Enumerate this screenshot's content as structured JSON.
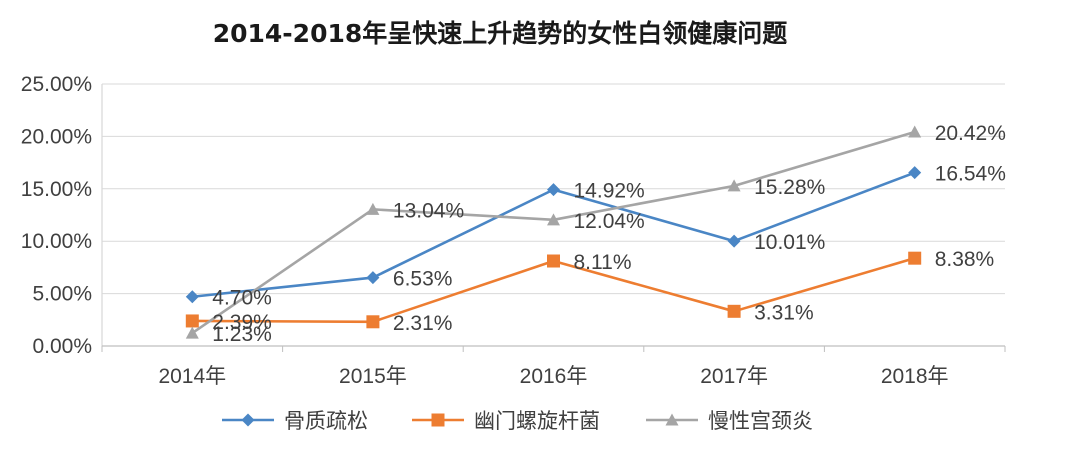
{
  "chart_data": {
    "type": "line",
    "title": "2014-2018年呈快速上升趋势的女性白领健康问题",
    "categories": [
      "2014年",
      "2015年",
      "2016年",
      "2017年",
      "2018年"
    ],
    "y_ticks": [
      "0.00%",
      "5.00%",
      "10.00%",
      "15.00%",
      "20.00%",
      "25.00%"
    ],
    "ylim": [
      0,
      25
    ],
    "grid": true,
    "legend_position": "bottom",
    "series": [
      {
        "name": "骨质疏松",
        "color": "#4a86c5",
        "marker": "diamond",
        "values": [
          4.7,
          6.53,
          14.92,
          10.01,
          16.54
        ],
        "labels": [
          "4.70%",
          "6.53%",
          "14.92%",
          "10.01%",
          "16.54%"
        ]
      },
      {
        "name": "幽门螺旋杆菌",
        "color": "#ed7d31",
        "marker": "square",
        "values": [
          2.39,
          2.31,
          8.11,
          3.31,
          8.38
        ],
        "labels": [
          "2.39%",
          "2.31%",
          "8.11%",
          "3.31%",
          "8.38%"
        ]
      },
      {
        "name": "慢性宫颈炎",
        "color": "#a5a5a5",
        "marker": "triangle",
        "values": [
          1.23,
          13.04,
          12.04,
          15.28,
          20.42
        ],
        "labels": [
          "1.23%",
          "13.04%",
          "12.04%",
          "15.28%",
          "20.42%"
        ]
      }
    ]
  }
}
